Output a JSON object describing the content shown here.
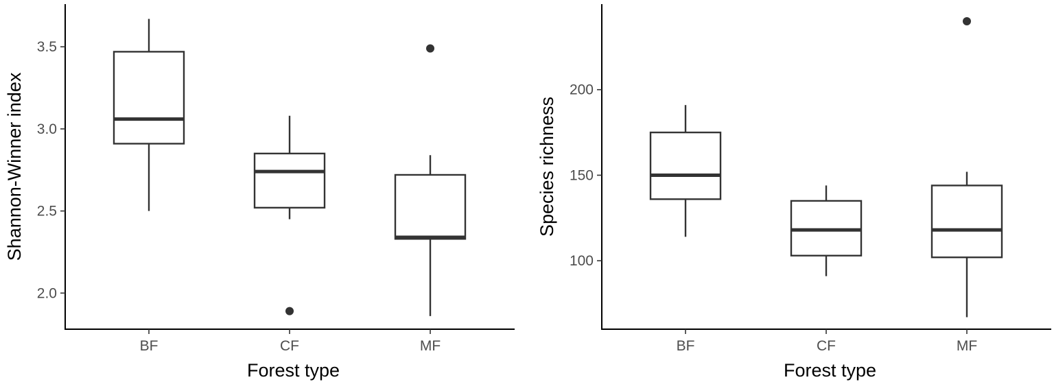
{
  "chart_data": [
    {
      "type": "boxplot",
      "xlabel": "Forest type",
      "ylabel": "Shannon-Winner index",
      "ylim": [
        1.78,
        3.76
      ],
      "yticks": [
        2.0,
        2.5,
        3.0,
        3.5
      ],
      "ytick_labels": [
        "2.0",
        "2.5",
        "3.0",
        "3.5"
      ],
      "grid": false,
      "categories": [
        "BF",
        "CF",
        "MF"
      ],
      "boxes": [
        {
          "category": "BF",
          "whisker_low": 2.5,
          "q1": 2.91,
          "median": 3.06,
          "q3": 3.47,
          "whisker_high": 3.67,
          "outliers": []
        },
        {
          "category": "CF",
          "whisker_low": 2.45,
          "q1": 2.52,
          "median": 2.74,
          "q3": 2.85,
          "whisker_high": 3.08,
          "outliers": [
            1.89
          ]
        },
        {
          "category": "MF",
          "whisker_low": 1.86,
          "q1": 2.33,
          "median": 2.34,
          "q3": 2.72,
          "whisker_high": 2.84,
          "outliers": [
            3.49
          ]
        }
      ]
    },
    {
      "type": "boxplot",
      "xlabel": "Forest type",
      "ylabel": "Species richness",
      "ylim": [
        60,
        250
      ],
      "yticks": [
        100,
        150,
        200
      ],
      "ytick_labels": [
        "100",
        "150",
        "200"
      ],
      "grid": false,
      "categories": [
        "BF",
        "CF",
        "MF"
      ],
      "boxes": [
        {
          "category": "BF",
          "whisker_low": 114,
          "q1": 136,
          "median": 150,
          "q3": 175,
          "whisker_high": 191,
          "outliers": []
        },
        {
          "category": "CF",
          "whisker_low": 91,
          "q1": 103,
          "median": 118,
          "q3": 135,
          "whisker_high": 144,
          "outliers": []
        },
        {
          "category": "MF",
          "whisker_low": 67,
          "q1": 102,
          "median": 118,
          "q3": 144,
          "whisker_high": 152,
          "outliers": [
            240
          ]
        }
      ]
    }
  ]
}
